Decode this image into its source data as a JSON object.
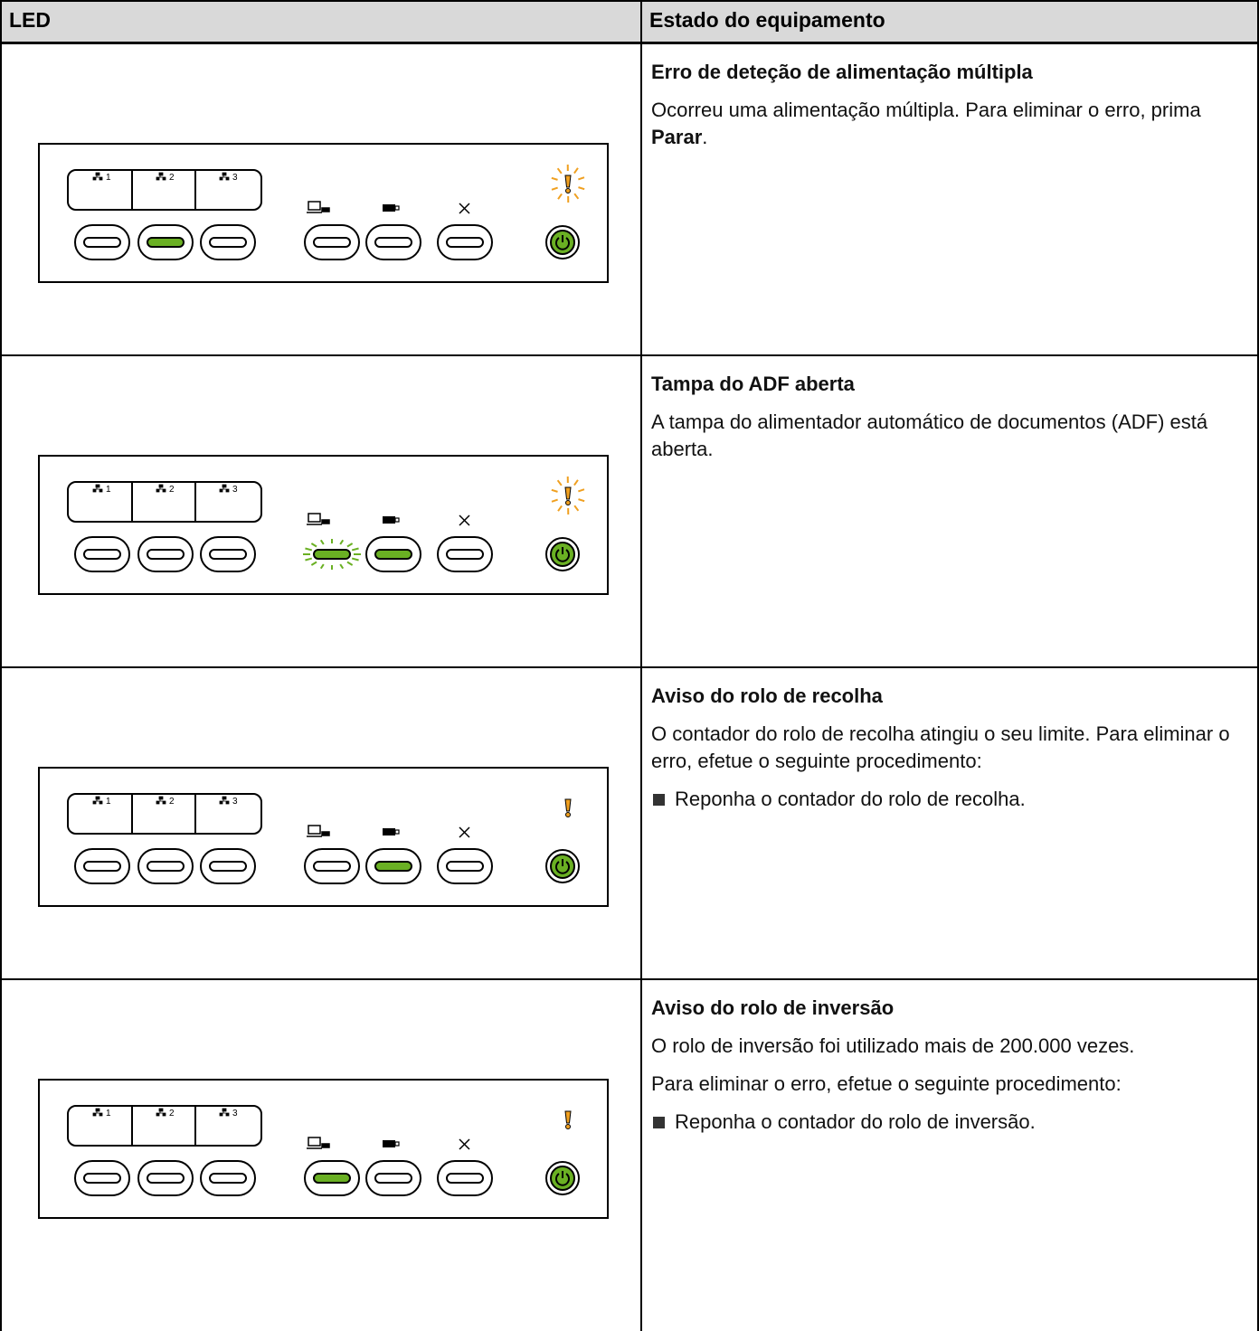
{
  "table": {
    "header": [
      "LED",
      "Estado do equipamento"
    ],
    "panel_labels": [
      "1",
      "2",
      "3"
    ],
    "rows": [
      {
        "title": "Erro de deteção de alimentação múltipla",
        "paragraphs": [
          [
            "Ocorreu uma alimentação múltipla. Para eliminar o erro, prima ",
            {
              "text": "Parar",
              "bold": true
            },
            "."
          ]
        ],
        "bullets": []
      },
      {
        "title": "Tampa do ADF aberta",
        "paragraphs": [
          [
            "A tampa do alimentador automático de documentos (ADF) está aberta."
          ]
        ],
        "bullets": []
      },
      {
        "title": "Aviso do rolo de recolha",
        "paragraphs": [
          [
            "O contador do rolo de recolha atingiu o seu limite. Para eliminar o erro, efetue o seguinte procedimento:"
          ]
        ],
        "bullets": [
          "Reponha o contador do rolo de recolha."
        ]
      },
      {
        "title": "Aviso do rolo de inversão",
        "paragraphs": [
          [
            "O rolo de inversão foi utilizado mais de 200.000 vezes."
          ],
          [
            "Para eliminar o erro, efetue o seguinte procedimento:"
          ]
        ],
        "bullets": [
          "Reponha o contador do rolo de inversão."
        ]
      }
    ]
  }
}
